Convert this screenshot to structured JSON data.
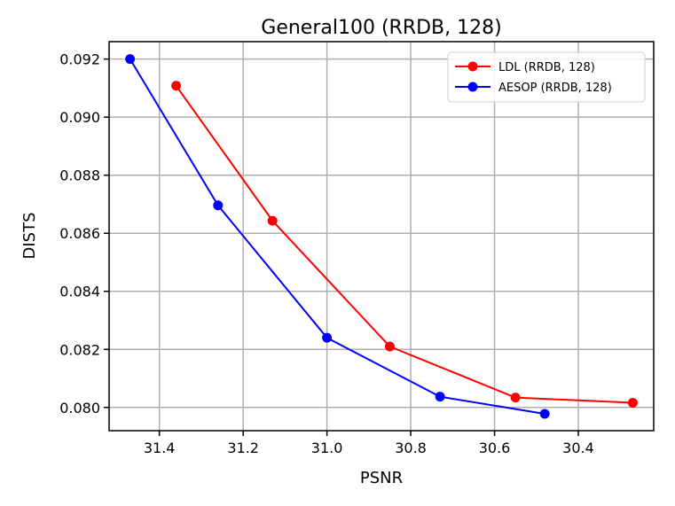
{
  "chart_data": {
    "type": "line",
    "title": "General100 (RRDB, 128)",
    "xlabel": "PSNR",
    "ylabel": "DISTS",
    "xlim": [
      31.52,
      30.22
    ],
    "ylim": [
      0.0792,
      0.0926
    ],
    "x_inverted": true,
    "grid": true,
    "legend_position": "top-right",
    "xticks": [
      31.4,
      31.2,
      31.0,
      30.8,
      30.6,
      30.4
    ],
    "xtick_labels": [
      "31.4",
      "31.2",
      "31.0",
      "30.8",
      "30.6",
      "30.4"
    ],
    "yticks": [
      0.08,
      0.082,
      0.084,
      0.086,
      0.088,
      0.09,
      0.092
    ],
    "ytick_labels": [
      "0.080",
      "0.082",
      "0.084",
      "0.086",
      "0.088",
      "0.090",
      "0.092"
    ],
    "series": [
      {
        "name": "LDL (RRDB, 128)",
        "color": "#ff0000",
        "x": [
          31.36,
          31.13,
          30.85,
          30.55,
          30.27
        ],
        "y": [
          0.09108,
          0.08643,
          0.0821,
          0.08034,
          0.08016
        ]
      },
      {
        "name": "AESOP (RRDB, 128)",
        "color": "#0000ff",
        "x": [
          31.47,
          31.26,
          31.0,
          30.73,
          30.48
        ],
        "y": [
          0.092,
          0.08696,
          0.0824,
          0.08037,
          0.07978
        ]
      }
    ]
  }
}
